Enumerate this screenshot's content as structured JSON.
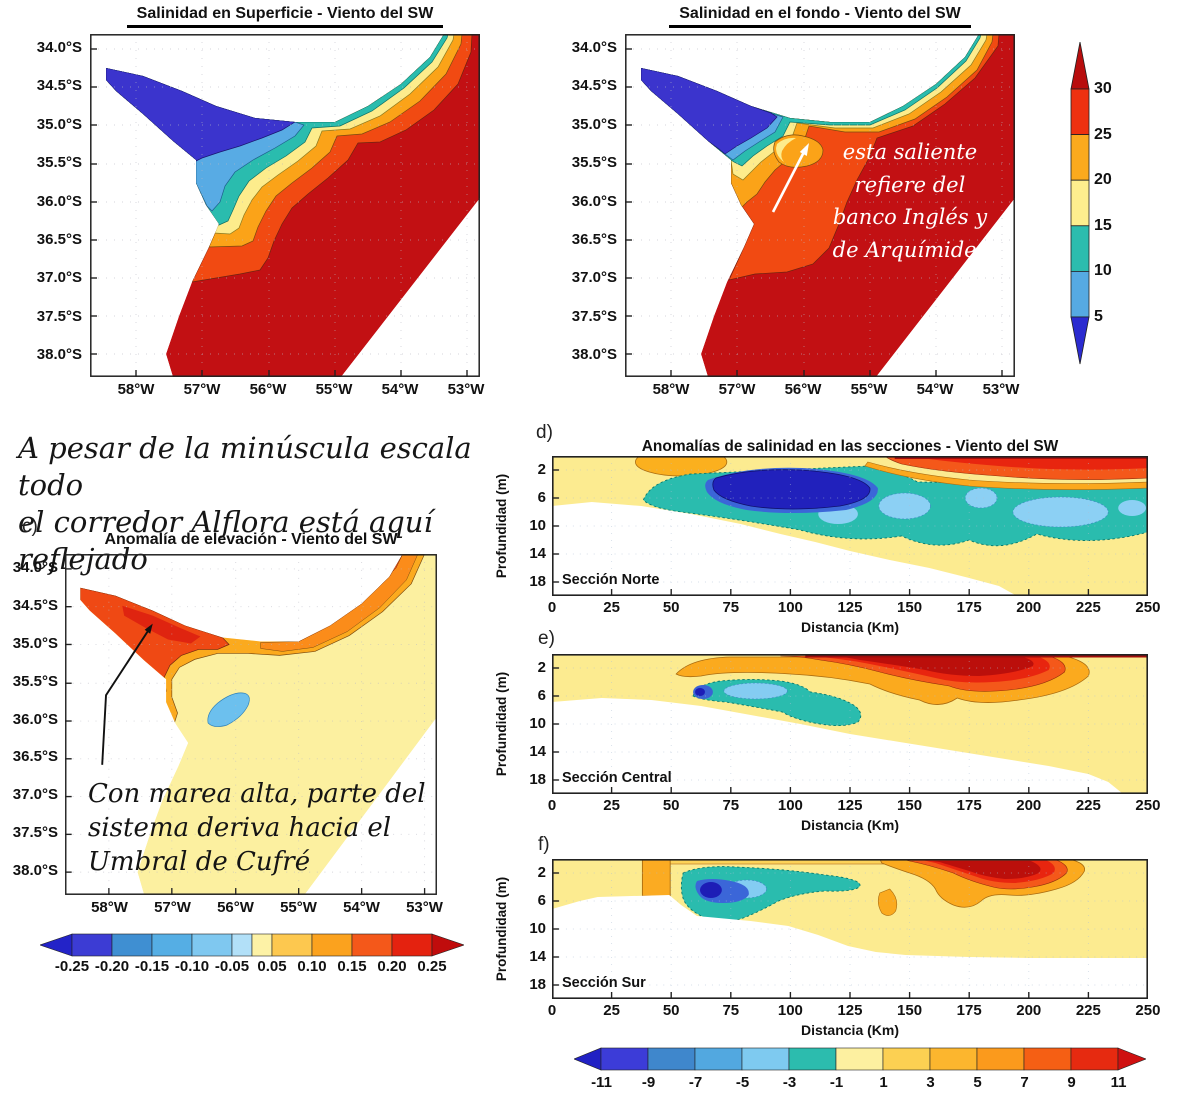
{
  "figure": {
    "panel_a": {
      "title": "Salinidad en Superficie - Viento del SW"
    },
    "panel_b": {
      "title": "Salinidad en el fondo - Viento del SW",
      "annotation_lines": [
        "esta saliente",
        "refiere del",
        "banco Inglés y",
        "de Arquímides"
      ]
    },
    "map_axes": {
      "lat_ticks": [
        "34.0°S",
        "34.5°S",
        "35.0°S",
        "35.5°S",
        "36.0°S",
        "36.5°S",
        "37.0°S",
        "37.5°S",
        "38.0°S"
      ],
      "lon_ticks": [
        "58°W",
        "57°W",
        "56°W",
        "55°W",
        "54°W",
        "53°W"
      ]
    },
    "salinity_colorbar": {
      "labels": [
        "30",
        "25",
        "20",
        "15",
        "10",
        "5"
      ],
      "colors_top_to_bottom": [
        "#b80d0d",
        "#ee3110",
        "#fbaa1e",
        "#fdee8e",
        "#2cbcae",
        "#56aae2",
        "#2b2bd0"
      ]
    },
    "note_left_lines": [
      "A pesar de la minúscula escala todo",
      "el corredor Alflora está aquí reflejado"
    ],
    "panel_c": {
      "label": "c)",
      "title": "Anomalía de elevación - Viento del SW",
      "annotation_lines": [
        "Con marea alta, parte del",
        "sistema deriva hacia el",
        "Umbral de Cufré"
      ],
      "colorbar_labels": [
        "-0.25",
        "-0.20",
        "-0.15",
        "-0.10",
        "-0.05",
        "0.05",
        "0.10",
        "0.15",
        "0.20",
        "0.25"
      ],
      "colorbar_colors": [
        "#2323c8",
        "#3c3cd4",
        "#3f8fd2",
        "#55aee4",
        "#7fc8f0",
        "#b2e0f8",
        "#fdf2a6",
        "#fdc84f",
        "#fba21e",
        "#f4581a",
        "#e4220f",
        "#c00c0c"
      ]
    },
    "sections": {
      "title": "Anomalías de salinidad en las secciones - Viento del SW",
      "xlabel": "Distancia (Km)",
      "ylabel": "Profundidad (m)",
      "x_ticks": [
        "0",
        "25",
        "50",
        "75",
        "100",
        "125",
        "150",
        "175",
        "200",
        "225",
        "250"
      ],
      "y_ticks": [
        "2",
        "6",
        "10",
        "14",
        "18"
      ],
      "panels": [
        {
          "label": "d)",
          "name": "Sección Norte"
        },
        {
          "label": "e)",
          "name": "Sección Central"
        },
        {
          "label": "f)",
          "name": "Sección Sur"
        }
      ],
      "colorbar_labels": [
        "-11",
        "-9",
        "-7",
        "-5",
        "-3",
        "-1",
        "1",
        "3",
        "5",
        "7",
        "9",
        "11"
      ],
      "colorbar_colors": [
        "#2121c4",
        "#3c3cd8",
        "#3f87cc",
        "#52a8e0",
        "#7ecaf0",
        "#2cbcae",
        "#fdf0a0",
        "#fcd052",
        "#fcb62e",
        "#fb9a1c",
        "#f55f14",
        "#e62a10",
        "#cf1010"
      ]
    }
  },
  "chart_data": [
    {
      "type": "heatmap",
      "panel": "a",
      "title": "Salinidad en Superficie - Viento del SW",
      "x_ticks": [
        "58°W",
        "57°W",
        "56°W",
        "55°W",
        "54°W",
        "53°W"
      ],
      "y_ticks": [
        "34.0°S",
        "34.5°S",
        "35.0°S",
        "35.5°S",
        "36.0°S",
        "36.5°S",
        "37.0°S",
        "37.5°S",
        "38.0°S"
      ],
      "contour_levels": [
        5,
        10,
        15,
        20,
        25,
        30
      ],
      "palette_low_to_high": [
        "#3b34cd",
        "#58abe4",
        "#2abcae",
        "#fdec8c",
        "#fba318",
        "#f14a12",
        "#c21013"
      ],
      "features": [
        "salinidad < 5 (azul oscuro) en el estuario interior del Río de la Plata hasta ~55.6°W",
        "bandas 5-30 cruzan el estuario en diagonal SW-NE entre Punta Piedras y Montevideo",
        "corredor costero de salinidad intermedia (10-25) pegado a la costa uruguaya hacia el NE",
        "salinidad > 30 (rojo oscuro) en el océano exterior; tierra en blanco"
      ]
    },
    {
      "type": "heatmap",
      "panel": "b",
      "title": "Salinidad en el fondo - Viento del SW",
      "x_ticks": [
        "58°W",
        "57°W",
        "56°W",
        "55°W",
        "54°W",
        "53°W"
      ],
      "y_ticks": [
        "34.0°S",
        "34.5°S",
        "35.0°S",
        "35.5°S",
        "36.0°S",
        "36.5°S",
        "37.0°S",
        "37.5°S",
        "38.0°S"
      ],
      "contour_levels": [
        5,
        10,
        15,
        20,
        25,
        30
      ],
      "annotation": "esta saliente refiere del banco Inglés y de Arquímides",
      "features": [
        "frente salino de fondo desplazado estuario adentro; azul < 5 sólo hasta ~56.4°W",
        "saliente naranja (20-25) sobre el banco Inglés y de Arquímides (~56°W, 35.3°S)",
        "salinidad > 30 ocupa casi toda la boca del estuario y el océano"
      ]
    },
    {
      "type": "heatmap",
      "panel": "c",
      "title": "Anomalía de elevación - Viento del SW",
      "units": "m",
      "x_ticks": [
        "58°W",
        "57°W",
        "56°W",
        "55°W",
        "54°W",
        "53°W"
      ],
      "y_ticks": [
        "34.0°S",
        "34.5°S",
        "35.0°S",
        "35.5°S",
        "36.0°S",
        "36.5°S",
        "37.0°S",
        "37.5°S",
        "38.0°S"
      ],
      "contour_levels": [
        -0.25,
        -0.2,
        -0.15,
        -0.1,
        -0.05,
        0.05,
        0.1,
        0.15,
        0.2,
        0.25
      ],
      "annotation": "Con marea alta, parte del sistema deriva hacia el Umbral de Cufré",
      "features": [
        "anomalía positiva 0.05-0.25 (naranja-rojo) a lo largo de la costa uruguaya y el estuario superior",
        "máximo > 0.20 cerca de 57°W, 34.7°S",
        "pequeña anomalía negativa (~ -0.10, celeste) cerca de 56°W, 35.9°S",
        "resto del dominio cercano a 0 (amarillo pálido)"
      ]
    },
    {
      "type": "heatmap",
      "panel": "d-f",
      "title": "Anomalías de salinidad en las secciones - Viento del SW",
      "x": {
        "label": "Distancia (Km)",
        "min": 0,
        "max": 250,
        "tick_step": 25
      },
      "y": {
        "label": "Profundidad (m)",
        "ticks": [
          2,
          6,
          10,
          14,
          18
        ]
      },
      "contour_levels": [
        -11,
        -9,
        -7,
        -5,
        -3,
        -1,
        1,
        3,
        5,
        7,
        9,
        11
      ],
      "sections": [
        {
          "name": "Sección Norte",
          "features": [
            "mínimo < -9 (azul oscuro) entre 75 y 135 km, 2-7 m de profundidad",
            "anomalía negativa -1 a -5 (verde/celeste) extendida de ~40 a 250 km",
            "máximo positivo > 9 en superficie (0-3 m) entre 140 y 250 km",
            "núcleo positivo 3-5 cerca de 50 km en superficie; fondo sin datos en blanco"
          ]
        },
        {
          "name": "Sección Central",
          "features": [
            "máximo > 9 en superficie entre ~110 y 195 km",
            "núcleo negativo -3 a -7 entre 55 y 135 km, 4-10 m",
            "fondo somero (blanco) que se profundiza hacia el este"
          ]
        },
        {
          "name": "Sección Sur",
          "features": [
            "banda positiva 1-3 casi vertical cerca de 40-50 km",
            "núcleo negativo < -7 cerca de 65-75 km, 3-6 m",
            "máximo > 9 entre 150 y 200 km, 1-5 m"
          ]
        }
      ]
    }
  ]
}
